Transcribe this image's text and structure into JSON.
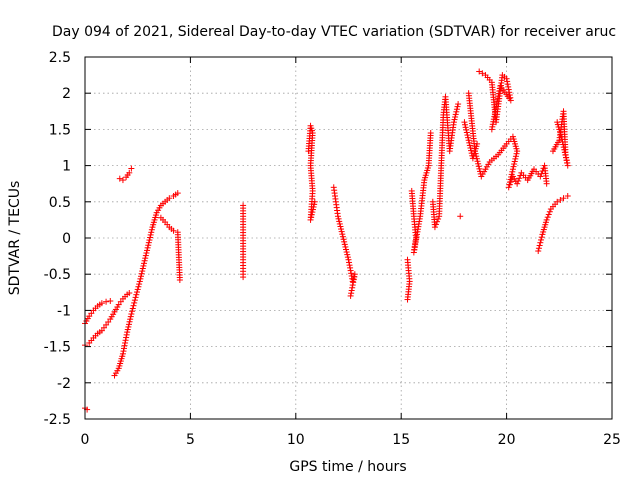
{
  "chart_data": {
    "type": "scatter",
    "title": "Day 094 of 2021, Sidereal Day-to-day VTEC variation (SDTVAR) for receiver aruc",
    "xlabel": "GPS time / hours",
    "ylabel": "SDTVAR / TECUs",
    "xlim": [
      0,
      25
    ],
    "ylim": [
      -2.5,
      2.5
    ],
    "xticks": [
      "0",
      "5",
      "10",
      "15",
      "20",
      "25"
    ],
    "yticks": [
      "2.5",
      "2",
      "1.5",
      "1",
      "0.5",
      "0",
      "-0.5",
      "-1",
      "-1.5",
      "-2",
      "-2.5"
    ],
    "grid": true,
    "marker": "+",
    "series": [
      {
        "name": "SDTVAR",
        "color": "#ff0000",
        "points": [
          [
            0.0,
            -2.35
          ],
          [
            0.1,
            -2.37
          ],
          [
            0.0,
            -1.18
          ],
          [
            0.2,
            -1.08
          ],
          [
            0.4,
            -1.0
          ],
          [
            0.6,
            -0.94
          ],
          [
            0.8,
            -0.9
          ],
          [
            1.0,
            -0.88
          ],
          [
            1.2,
            -0.87
          ],
          [
            0.0,
            -1.48
          ],
          [
            0.2,
            -1.45
          ],
          [
            0.4,
            -1.38
          ],
          [
            0.6,
            -1.32
          ],
          [
            0.8,
            -1.28
          ],
          [
            1.0,
            -1.2
          ],
          [
            1.2,
            -1.12
          ],
          [
            1.4,
            -1.02
          ],
          [
            1.6,
            -0.92
          ],
          [
            1.8,
            -0.84
          ],
          [
            2.0,
            -0.78
          ],
          [
            2.1,
            -0.76
          ],
          [
            1.4,
            -1.9
          ],
          [
            1.6,
            -1.8
          ],
          [
            1.8,
            -1.6
          ],
          [
            2.0,
            -1.3
          ],
          [
            2.2,
            -1.05
          ],
          [
            2.4,
            -0.82
          ],
          [
            2.6,
            -0.6
          ],
          [
            2.8,
            -0.35
          ],
          [
            3.0,
            -0.1
          ],
          [
            3.2,
            0.15
          ],
          [
            3.4,
            0.35
          ],
          [
            3.6,
            0.45
          ],
          [
            3.8,
            0.5
          ],
          [
            4.0,
            0.55
          ],
          [
            4.2,
            0.58
          ],
          [
            4.4,
            0.62
          ],
          [
            3.6,
            0.28
          ],
          [
            3.8,
            0.22
          ],
          [
            4.0,
            0.15
          ],
          [
            4.2,
            0.1
          ],
          [
            4.4,
            0.08
          ],
          [
            4.5,
            -0.58
          ],
          [
            1.65,
            0.82
          ],
          [
            1.8,
            0.8
          ],
          [
            1.95,
            0.84
          ],
          [
            2.1,
            0.9
          ],
          [
            2.2,
            0.96
          ],
          [
            7.5,
            0.45
          ],
          [
            7.5,
            0.3
          ],
          [
            7.5,
            0.15
          ],
          [
            7.5,
            0.0
          ],
          [
            7.5,
            -0.15
          ],
          [
            7.5,
            -0.3
          ],
          [
            7.5,
            -0.54
          ],
          [
            10.6,
            1.2
          ],
          [
            10.7,
            1.55
          ],
          [
            10.8,
            1.45
          ],
          [
            10.7,
            1.0
          ],
          [
            10.8,
            0.65
          ],
          [
            10.7,
            0.25
          ],
          [
            10.9,
            0.5
          ],
          [
            11.8,
            0.7
          ],
          [
            11.9,
            0.5
          ],
          [
            12.0,
            0.3
          ],
          [
            12.5,
            -0.3
          ],
          [
            12.6,
            -0.45
          ],
          [
            12.7,
            -0.6
          ],
          [
            12.8,
            -0.5
          ],
          [
            12.6,
            -0.8
          ],
          [
            15.3,
            -0.3
          ],
          [
            15.4,
            -0.6
          ],
          [
            15.3,
            -0.85
          ],
          [
            15.5,
            0.65
          ],
          [
            15.6,
            0.3
          ],
          [
            15.7,
            0.0
          ],
          [
            15.6,
            -0.2
          ],
          [
            15.9,
            0.3
          ],
          [
            16.1,
            0.8
          ],
          [
            16.3,
            1.0
          ],
          [
            16.4,
            1.45
          ],
          [
            16.5,
            0.5
          ],
          [
            16.6,
            0.15
          ],
          [
            16.8,
            0.3
          ],
          [
            16.9,
            1.0
          ],
          [
            17.0,
            1.7
          ],
          [
            17.1,
            1.95
          ],
          [
            17.3,
            1.2
          ],
          [
            17.5,
            1.6
          ],
          [
            17.7,
            1.85
          ],
          [
            17.8,
            0.3
          ],
          [
            18.0,
            1.6
          ],
          [
            18.2,
            1.35
          ],
          [
            18.4,
            1.1
          ],
          [
            18.6,
            1.3
          ],
          [
            18.7,
            2.3
          ],
          [
            19.0,
            2.25
          ],
          [
            19.3,
            2.15
          ],
          [
            19.5,
            1.6
          ],
          [
            19.8,
            2.25
          ],
          [
            20.0,
            2.2
          ],
          [
            20.2,
            1.9
          ],
          [
            19.7,
            2.1
          ],
          [
            19.3,
            1.5
          ],
          [
            18.2,
            2.0
          ],
          [
            18.5,
            1.2
          ],
          [
            18.8,
            0.85
          ],
          [
            19.2,
            1.05
          ],
          [
            19.6,
            1.15
          ],
          [
            20.0,
            1.3
          ],
          [
            20.3,
            1.4
          ],
          [
            20.5,
            1.2
          ],
          [
            20.1,
            0.7
          ],
          [
            20.3,
            0.85
          ],
          [
            20.5,
            0.75
          ],
          [
            20.7,
            0.9
          ],
          [
            21.0,
            0.8
          ],
          [
            21.3,
            0.95
          ],
          [
            21.6,
            0.85
          ],
          [
            21.8,
            1.0
          ],
          [
            21.9,
            0.75
          ],
          [
            21.5,
            -0.18
          ],
          [
            21.7,
            0.05
          ],
          [
            21.9,
            0.25
          ],
          [
            22.1,
            0.4
          ],
          [
            22.4,
            0.5
          ],
          [
            22.7,
            0.55
          ],
          [
            22.9,
            0.58
          ],
          [
            22.2,
            1.2
          ],
          [
            22.5,
            1.35
          ],
          [
            22.7,
            1.75
          ],
          [
            22.8,
            1.15
          ],
          [
            22.9,
            1.0
          ],
          [
            22.6,
            1.4
          ],
          [
            22.4,
            1.6
          ]
        ]
      }
    ]
  }
}
